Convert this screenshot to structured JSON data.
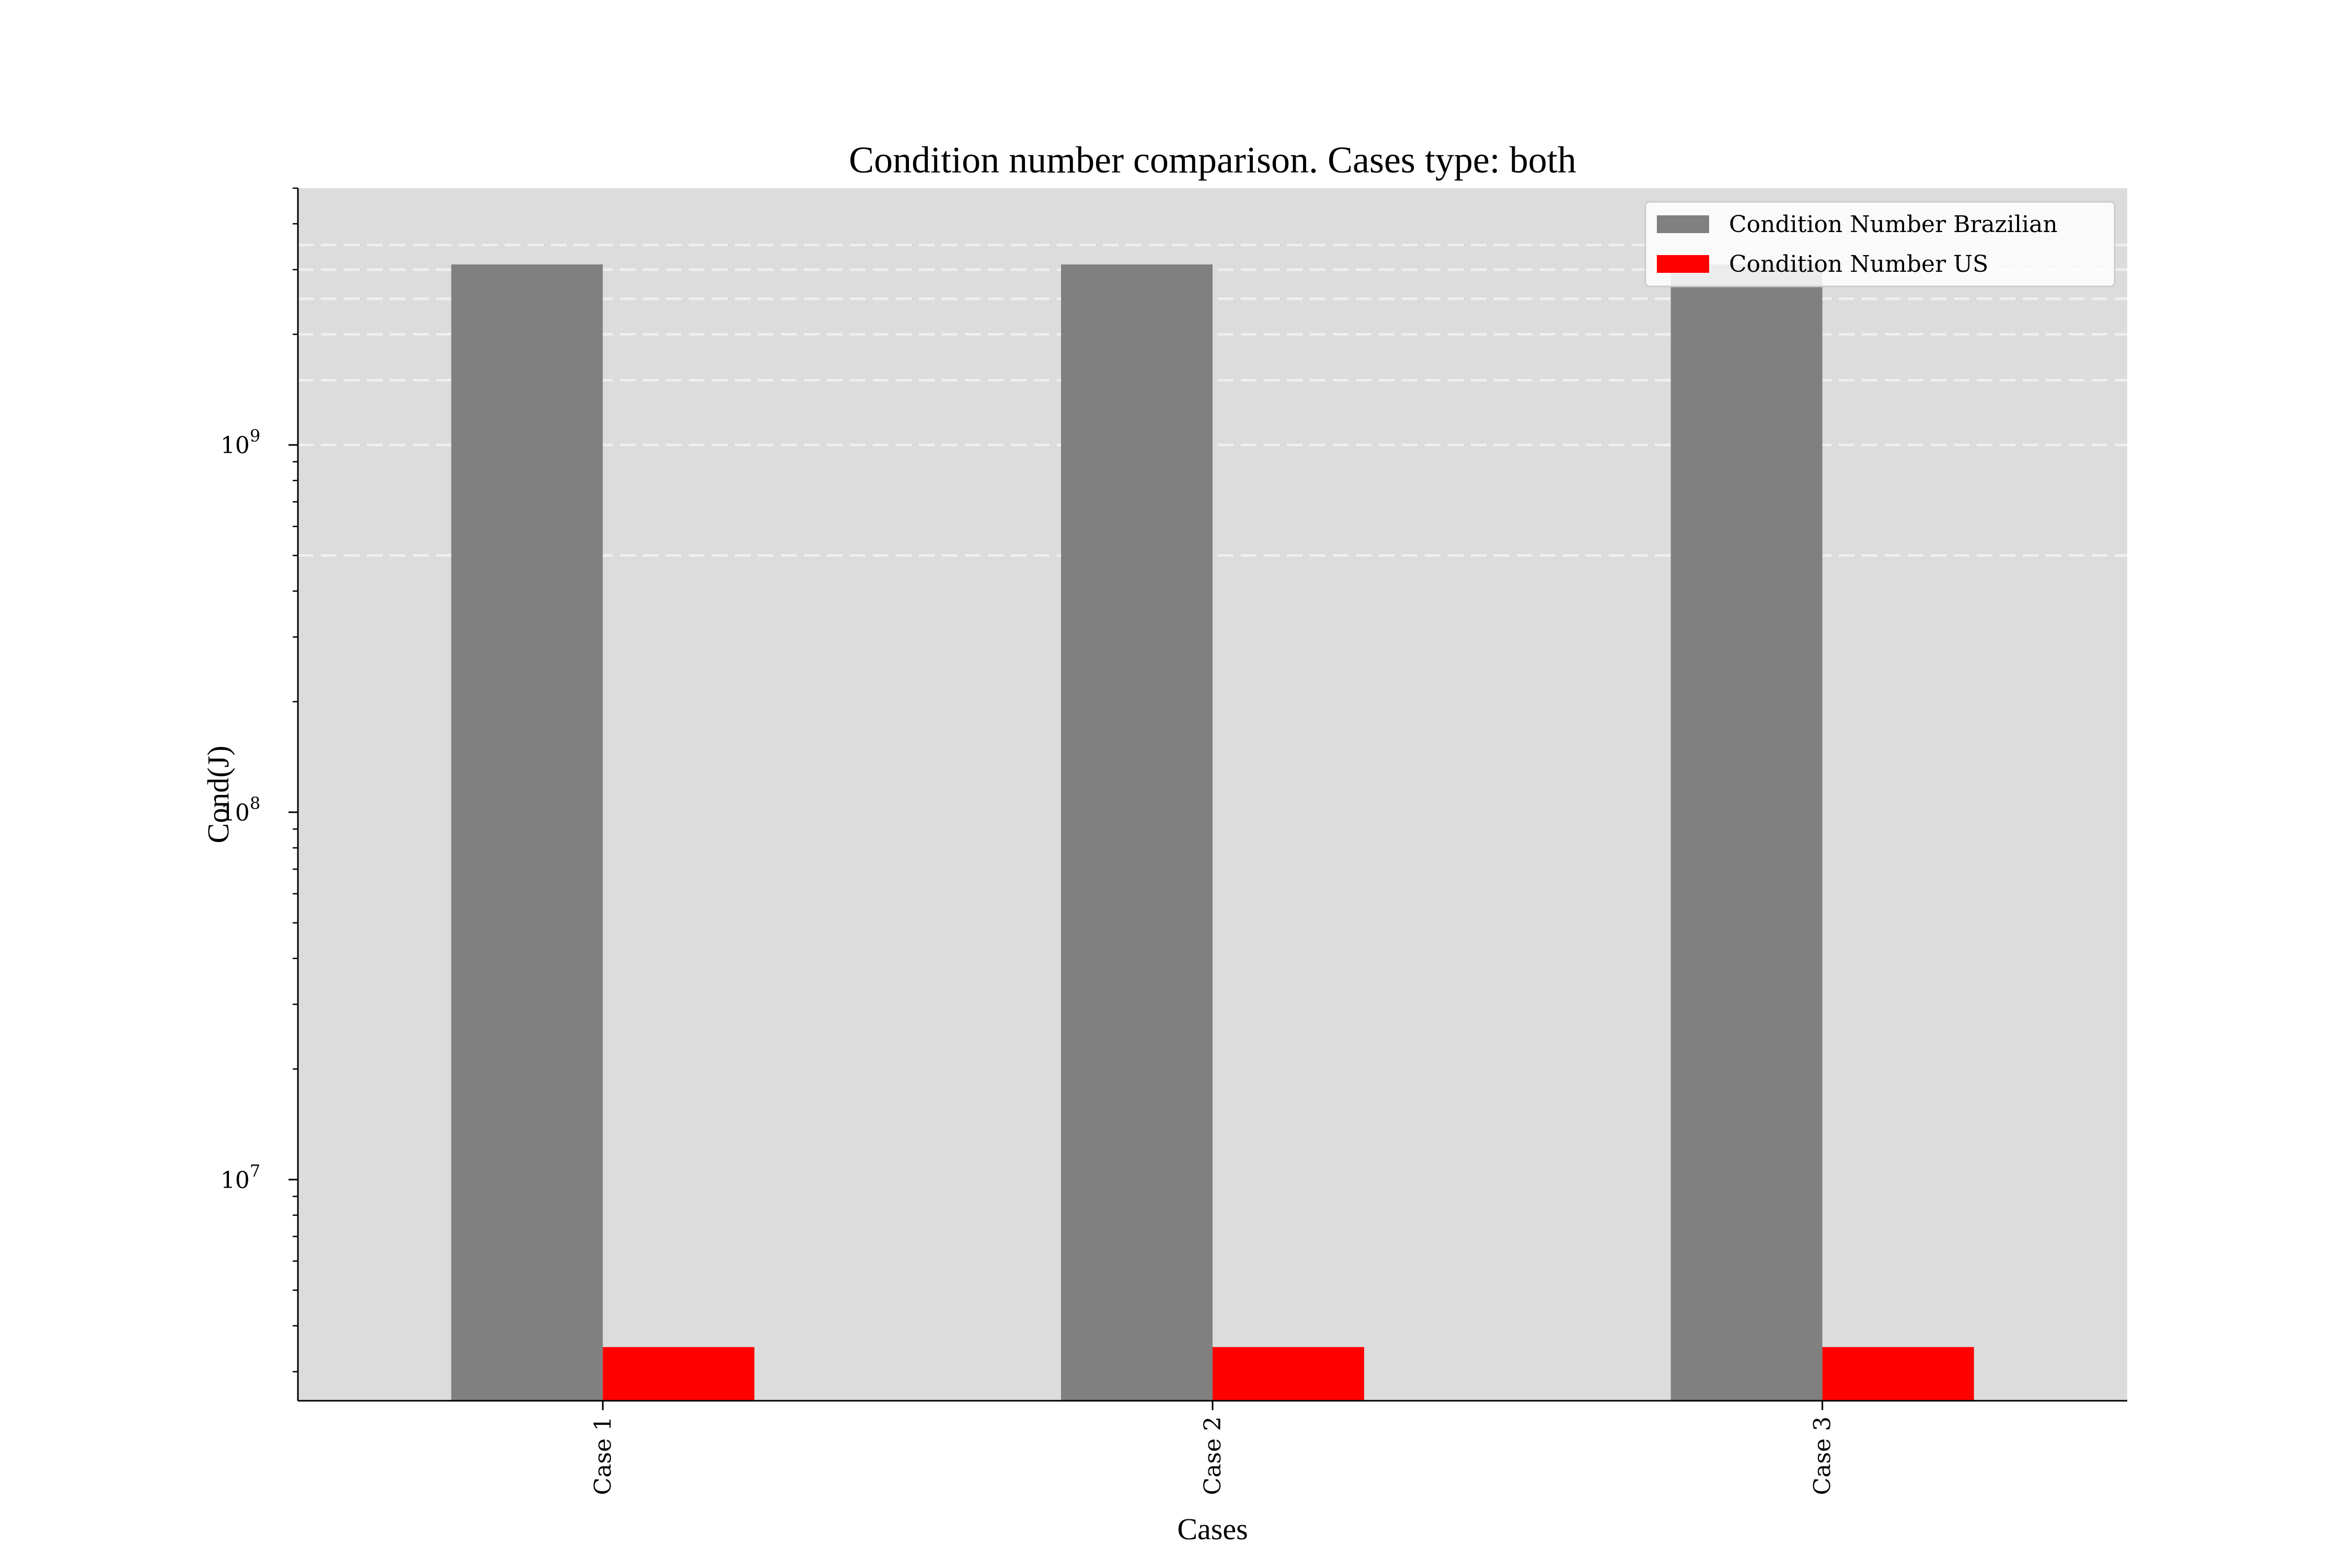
{
  "chart_data": {
    "type": "bar",
    "title": "Condition number comparison. Cases type: both",
    "xlabel": "Cases",
    "ylabel": "Cond(J)",
    "categories": [
      "Case 1",
      "Case 2",
      "Case 3"
    ],
    "yscale": "log",
    "ylim": [
      2500000,
      5000000000
    ],
    "yticks": [
      {
        "value": 10000000,
        "base": "10",
        "exp": "7"
      },
      {
        "value": 100000000,
        "base": "10",
        "exp": "8"
      },
      {
        "value": 1000000000,
        "base": "10",
        "exp": "9"
      }
    ],
    "grid": "y-major, dashed",
    "legend_position": "top-right",
    "series": [
      {
        "name": "Condition Number Brazilian",
        "color": "#808080",
        "values": [
          3100000000,
          3100000000,
          3100000000
        ]
      },
      {
        "name": "Condition Number US",
        "color": "#ff0000",
        "values": [
          3500000,
          3500000,
          3500000
        ]
      }
    ],
    "background_color": "#dcdcdc",
    "gridline_values": [
      500000000,
      1000000000,
      1500000000,
      2000000000,
      2500000000,
      3000000000,
      3500000000
    ]
  }
}
